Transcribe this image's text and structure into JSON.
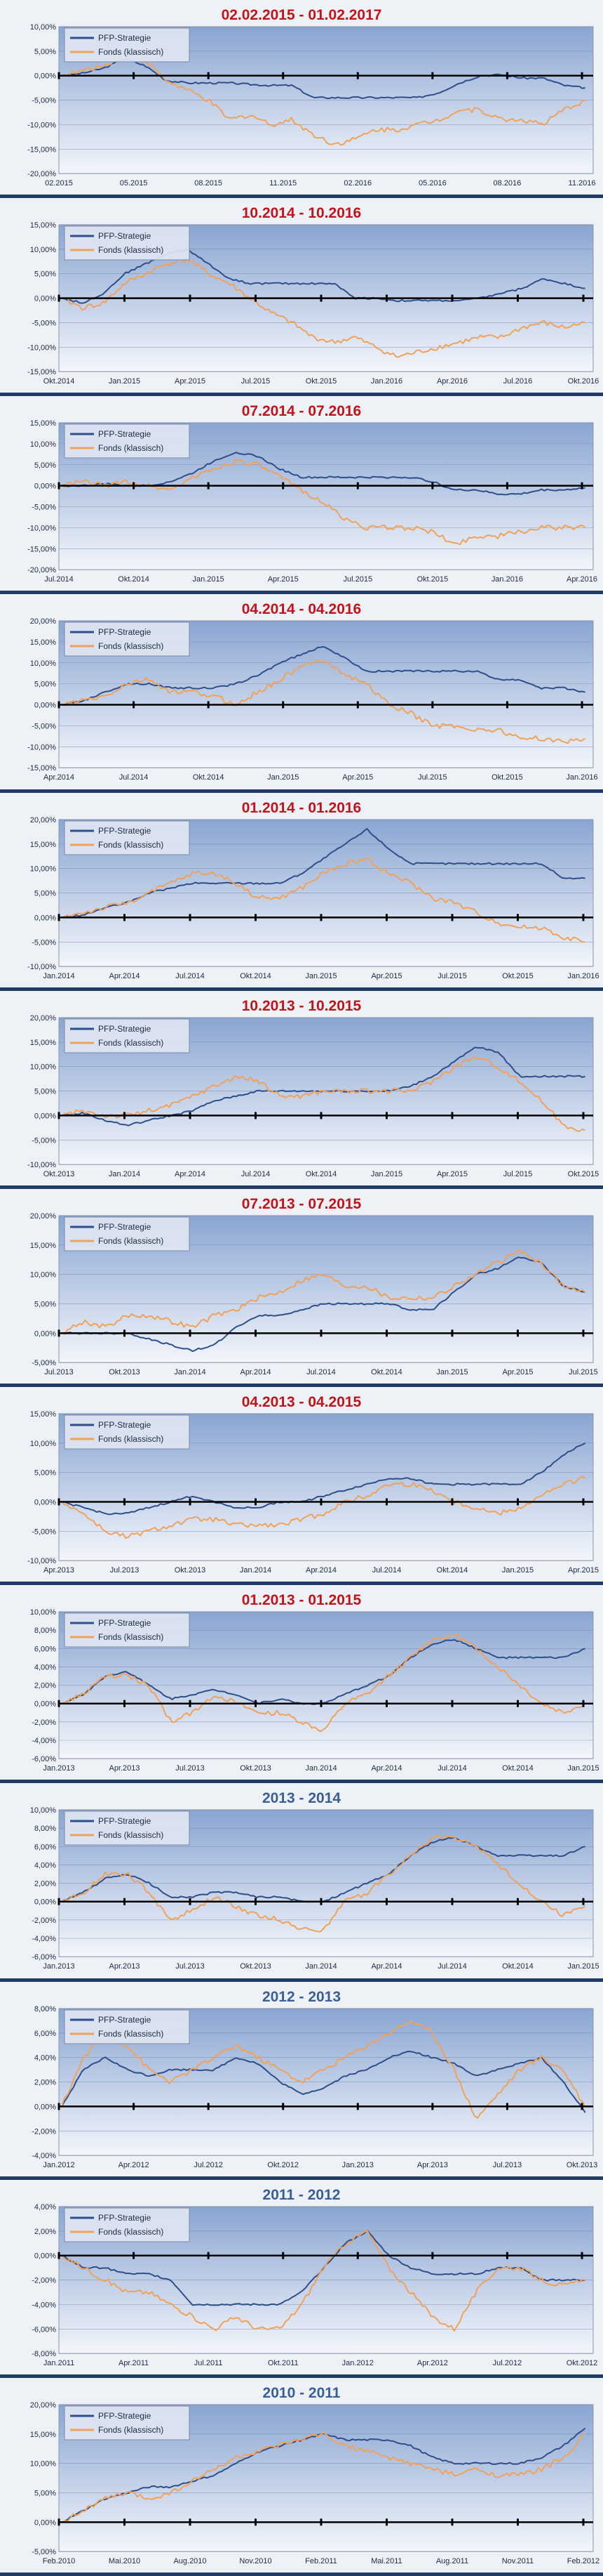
{
  "legend": {
    "series1": "PFP-Strategie",
    "series2": "Fonds (klassisch)"
  },
  "colors": {
    "strategy": "#2e4f8a",
    "fund": "#f0a25a",
    "title_red": "#c0141b",
    "title_blue": "#3a5f95",
    "zero_line": "#000000"
  },
  "chart_data": [
    {
      "type": "line",
      "title": "02.02.2015 - 01.02.2017",
      "title_color": "red",
      "ylim": [
        -20,
        10
      ],
      "ystep": 5,
      "y_ticks": [
        "10,00%",
        "5,00%",
        "0,00%",
        "-5,00%",
        "-10,00%",
        "-15,00%",
        "-20,00%"
      ],
      "x_ticks": [
        "02.2015",
        "05.2015",
        "08.2015",
        "11.2015",
        "02.2016",
        "05.2016",
        "08.2016",
        "11.2016"
      ],
      "series": [
        {
          "name": "PFP-Strategie",
          "values": [
            0,
            0.5,
            1.5,
            3.5,
            2,
            -1,
            -1.5,
            -1.5,
            -1.5,
            -1.8,
            -2,
            -2,
            -4.5,
            -4.5,
            -4.5,
            -4.5,
            -4.5,
            -4.5,
            -3.5,
            -1.5,
            0,
            0.2,
            -0.5,
            -0.5,
            -2,
            -2.5
          ]
        },
        {
          "name": "Fonds (klassisch)",
          "values": [
            0,
            1,
            2,
            4.5,
            3,
            -1,
            -3,
            -5,
            -9,
            -8,
            -10,
            -9,
            -12,
            -14,
            -13,
            -11,
            -11,
            -10,
            -9,
            -7,
            -7,
            -9,
            -9,
            -10,
            -7,
            -5
          ]
        }
      ]
    },
    {
      "type": "line",
      "title": "10.2014 - 10.2016",
      "title_color": "red",
      "ylim": [
        -15,
        15
      ],
      "ystep": 5,
      "y_ticks": [
        "15,00%",
        "10,00%",
        "5,00%",
        "0,00%",
        "-5,00%",
        "-10,00%",
        "-15,00%"
      ],
      "x_ticks": [
        "Okt.2014",
        "Jan.2015",
        "Apr.2015",
        "Jul.2015",
        "Okt.2015",
        "Jan.2016",
        "Apr.2016",
        "Jul.2016",
        "Okt.2016"
      ],
      "series": [
        {
          "name": "PFP-Strategie",
          "values": [
            0,
            -1,
            1,
            5,
            7,
            9,
            10,
            7,
            4,
            3,
            3,
            3,
            3,
            3,
            0,
            0,
            -0.5,
            -0.5,
            -0.5,
            -0.5,
            0,
            1,
            2,
            4,
            3,
            2
          ]
        },
        {
          "name": "Fonds (klassisch)",
          "values": [
            0,
            -2,
            -1,
            3,
            5,
            7,
            8,
            5,
            3,
            0,
            -3,
            -5,
            -8,
            -9,
            -8,
            -10,
            -12,
            -11,
            -10,
            -9,
            -8,
            -8,
            -6,
            -5,
            -6,
            -5
          ]
        }
      ]
    },
    {
      "type": "line",
      "title": "07.2014 - 07.2016",
      "title_color": "red",
      "ylim": [
        -20,
        15
      ],
      "ystep": 5,
      "y_ticks": [
        "15,00%",
        "10,00%",
        "5,00%",
        "0,00%",
        "-5,00%",
        "-10,00%",
        "-15,00%",
        "-20,00%"
      ],
      "x_ticks": [
        "Jul.2014",
        "Okt.2014",
        "Jan.2015",
        "Apr.2015",
        "Jul.2015",
        "Okt.2015",
        "Jan.2016",
        "Apr.2016"
      ],
      "series": [
        {
          "name": "PFP-Strategie",
          "values": [
            0,
            0,
            0.5,
            0,
            0,
            1,
            3,
            6,
            8,
            7,
            4,
            2,
            2,
            2,
            2,
            2,
            2,
            1,
            -1,
            -1,
            -2,
            -2,
            -1,
            -1,
            -0.5
          ]
        },
        {
          "name": "Fonds (klassisch)",
          "values": [
            0,
            1,
            0,
            1,
            0,
            -1,
            2,
            4,
            6,
            5,
            2,
            -1,
            -4,
            -8,
            -10,
            -10,
            -10,
            -11,
            -14,
            -12,
            -12,
            -11,
            -10,
            -10,
            -10
          ]
        }
      ]
    },
    {
      "type": "line",
      "title": "04.2014 - 04.2016",
      "title_color": "red",
      "ylim": [
        -15,
        20
      ],
      "ystep": 5,
      "y_ticks": [
        "20,00%",
        "15,00%",
        "10,00%",
        "5,00%",
        "0,00%",
        "-5,00%",
        "-10,00%",
        "-15,00%"
      ],
      "x_ticks": [
        "Apr.2014",
        "Jul.2014",
        "Okt.2014",
        "Jan.2015",
        "Apr.2015",
        "Jul.2015",
        "Okt.2015",
        "Jan.2016"
      ],
      "series": [
        {
          "name": "PFP-Strategie",
          "values": [
            0,
            1,
            3,
            5,
            5,
            4,
            4,
            4,
            5,
            7,
            10,
            12,
            14,
            11,
            8,
            8,
            8,
            8,
            8,
            8,
            6,
            6,
            4,
            4,
            3
          ]
        },
        {
          "name": "Fonds (klassisch)",
          "values": [
            0,
            1,
            2,
            5,
            6,
            3,
            3,
            2,
            0,
            3,
            6,
            9,
            11,
            7,
            5,
            0,
            -2,
            -5,
            -5,
            -6,
            -6,
            -8,
            -8,
            -9,
            -8
          ]
        }
      ]
    },
    {
      "type": "line",
      "title": "01.2014 - 01.2016",
      "title_color": "red",
      "ylim": [
        -10,
        20
      ],
      "ystep": 5,
      "y_ticks": [
        "20,00%",
        "15,00%",
        "10,00%",
        "5,00%",
        "0,00%",
        "-5,00%",
        "-10,00%"
      ],
      "x_ticks": [
        "Jan.2014",
        "Apr.2014",
        "Jul.2014",
        "Okt.2014",
        "Jan.2015",
        "Apr.2015",
        "Jul.2015",
        "Okt.2015",
        "Jan.2016"
      ],
      "series": [
        {
          "name": "PFP-Strategie",
          "values": [
            0,
            0.5,
            2,
            3,
            5,
            6,
            7,
            7,
            7,
            7,
            7,
            9,
            12,
            15,
            18,
            14,
            11,
            11,
            11,
            11,
            11,
            11,
            11,
            8,
            8
          ]
        },
        {
          "name": "Fonds (klassisch)",
          "values": [
            0,
            1,
            2,
            3,
            5,
            7,
            9,
            9,
            7,
            4,
            4,
            6,
            9,
            11,
            12,
            9,
            7,
            4,
            3,
            1,
            -1,
            -2,
            -2,
            -4,
            -5
          ]
        }
      ]
    },
    {
      "type": "line",
      "title": "10.2013 - 10.2015",
      "title_color": "red",
      "ylim": [
        -10,
        20
      ],
      "ystep": 5,
      "y_ticks": [
        "20,00%",
        "15,00%",
        "10,00%",
        "5,00%",
        "0,00%",
        "-5,00%",
        "-10,00%"
      ],
      "x_ticks": [
        "Okt.2013",
        "Jan.2014",
        "Apr.2014",
        "Jul.2014",
        "Okt.2014",
        "Jan.2015",
        "Apr.2015",
        "Jul.2015",
        "Okt.2015"
      ],
      "series": [
        {
          "name": "PFP-Strategie",
          "values": [
            0,
            0.5,
            -1,
            -2,
            -1,
            0,
            1,
            3,
            4,
            5,
            5,
            5,
            5,
            5,
            5,
            5,
            6,
            8,
            11,
            14,
            13,
            8,
            8,
            8,
            8
          ]
        },
        {
          "name": "Fonds (klassisch)",
          "values": [
            0,
            1,
            0,
            0,
            1,
            2,
            4,
            6,
            8,
            7,
            4,
            4,
            5,
            5,
            5,
            5,
            5,
            7,
            10,
            12,
            10,
            7,
            3,
            -2,
            -3
          ]
        }
      ]
    },
    {
      "type": "line",
      "title": "07.2013 - 07.2015",
      "title_color": "red",
      "ylim": [
        -5,
        20
      ],
      "ystep": 5,
      "y_ticks": [
        "20,00%",
        "15,00%",
        "10,00%",
        "5,00%",
        "0,00%",
        "-5,00%"
      ],
      "x_ticks": [
        "Jul.2013",
        "Okt.2013",
        "Jan.2014",
        "Apr.2014",
        "Jul.2014",
        "Okt.2014",
        "Jan.2015",
        "Apr.2015",
        "Jul.2015"
      ],
      "series": [
        {
          "name": "PFP-Strategie",
          "values": [
            0,
            0,
            0,
            0,
            -1,
            -2,
            -3,
            -2,
            1,
            3,
            3,
            4,
            5,
            5,
            5,
            5,
            4,
            4,
            7,
            10,
            11,
            13,
            12,
            8,
            7
          ]
        },
        {
          "name": "Fonds (klassisch)",
          "values": [
            0,
            2,
            1,
            3,
            3,
            2,
            1,
            3,
            4,
            6,
            7,
            9,
            10,
            8,
            8,
            6,
            6,
            6,
            8,
            10,
            12,
            14,
            12,
            8,
            7
          ]
        }
      ]
    },
    {
      "type": "line",
      "title": "04.2013 - 04.2015",
      "title_color": "red",
      "ylim": [
        -10,
        15
      ],
      "ystep": 5,
      "y_ticks": [
        "15,00%",
        "10,00%",
        "5,00%",
        "0,00%",
        "-5,00%",
        "-10,00%"
      ],
      "x_ticks": [
        "Apr.2013",
        "Jul.2013",
        "Okt.2013",
        "Jan.2014",
        "Apr.2014",
        "Jul.2014",
        "Okt.2014",
        "Jan.2015",
        "Apr.2015"
      ],
      "series": [
        {
          "name": "PFP-Strategie",
          "values": [
            0,
            -1,
            -2,
            -2,
            -1,
            0,
            1,
            0,
            -1,
            -1,
            0,
            0,
            1,
            2,
            3,
            4,
            4,
            3,
            3,
            3,
            3,
            3,
            5,
            8,
            10
          ]
        },
        {
          "name": "Fonds (klassisch)",
          "values": [
            0,
            -2,
            -5,
            -6,
            -5,
            -4,
            -3,
            -3,
            -4,
            -4,
            -4,
            -3,
            -2,
            0,
            1,
            3,
            3,
            2,
            0,
            -1,
            -2,
            -1,
            1,
            3,
            4
          ]
        }
      ]
    },
    {
      "type": "line",
      "title": "01.2013 - 01.2015",
      "title_color": "red",
      "ylim": [
        -6,
        10
      ],
      "ystep": 2,
      "y_ticks": [
        "10,00%",
        "8,00%",
        "6,00%",
        "4,00%",
        "2,00%",
        "0,00%",
        "-2,00%",
        "-4,00%",
        "-6,00%"
      ],
      "x_ticks": [
        "Jan.2013",
        "Apr.2013",
        "Jul.2013",
        "Okt.2013",
        "Jan.2014",
        "Apr.2014",
        "Jul.2014",
        "Okt.2014",
        "Jan.2015"
      ],
      "series": [
        {
          "name": "PFP-Strategie",
          "values": [
            0,
            1,
            3,
            3.5,
            2,
            0.5,
            1,
            1.5,
            1,
            0,
            0.5,
            0,
            0,
            1,
            2,
            3,
            5,
            6.5,
            7,
            6,
            5,
            5,
            5,
            5,
            6
          ]
        },
        {
          "name": "Fonds (klassisch)",
          "values": [
            0,
            1,
            3,
            3,
            2,
            -2,
            -1,
            1,
            0,
            -1,
            -1,
            -2,
            -3,
            0,
            1,
            3,
            5,
            7,
            7.5,
            6,
            4,
            2,
            0,
            -1,
            0
          ]
        }
      ]
    },
    {
      "type": "line",
      "title": "2013 - 2014",
      "title_color": "blue",
      "ylim": [
        -6,
        10
      ],
      "ystep": 2,
      "y_ticks": [
        "10,00%",
        "8,00%",
        "6,00%",
        "4,00%",
        "2,00%",
        "0,00%",
        "-2,00%",
        "-4,00%",
        "-6,00%"
      ],
      "x_ticks": [
        "Jan.2013",
        "Apr.2013",
        "Jul.2013",
        "Okt.2013",
        "Jan.2014",
        "Apr.2014",
        "Jul.2014",
        "Okt.2014",
        "Jan.2015"
      ],
      "series": [
        {
          "name": "PFP-Strategie",
          "values": [
            0,
            1,
            2.5,
            3,
            2,
            0.5,
            0.5,
            1,
            1,
            0.5,
            0.5,
            0,
            0,
            1,
            2,
            3,
            5,
            6.5,
            7,
            6,
            5,
            5,
            5,
            5,
            6
          ]
        },
        {
          "name": "Fonds (klassisch)",
          "values": [
            0,
            1,
            3,
            3,
            1,
            -2,
            -1,
            0.5,
            -0.5,
            -1.5,
            -2,
            -3,
            -3,
            0,
            1,
            3,
            5,
            7,
            7,
            6,
            4,
            2,
            0,
            -1.5,
            -0.5
          ]
        }
      ]
    },
    {
      "type": "line",
      "title": "2012 - 2013",
      "title_color": "blue",
      "ylim": [
        -4,
        8
      ],
      "ystep": 2,
      "y_ticks": [
        "8,00%",
        "6,00%",
        "4,00%",
        "2,00%",
        "0,00%",
        "-2,00%",
        "-4,00%"
      ],
      "x_ticks": [
        "Jan.2012",
        "Apr.2012",
        "Jul.2012",
        "Okt.2012",
        "Jan.2013",
        "Apr.2013",
        "Jul.2013",
        "Okt.2013"
      ],
      "series": [
        {
          "name": "PFP-Strategie",
          "values": [
            0,
            3,
            4,
            3,
            2.5,
            3,
            3,
            3,
            4,
            3.5,
            2,
            1,
            1.5,
            2.5,
            3,
            4,
            4.5,
            4,
            3.5,
            2.5,
            3,
            3.5,
            4,
            2,
            -0.5
          ]
        },
        {
          "name": "Fonds (klassisch)",
          "values": [
            0,
            4,
            6,
            5,
            3,
            2,
            3,
            4,
            5,
            4,
            3,
            2,
            3,
            4,
            5,
            6,
            7,
            6,
            3,
            -1,
            1,
            3,
            4,
            3,
            0
          ]
        }
      ]
    },
    {
      "type": "line",
      "title": "2011 - 2012",
      "title_color": "blue",
      "ylim": [
        -8,
        4
      ],
      "ystep": 2,
      "y_ticks": [
        "4,00%",
        "2,00%",
        "0,00%",
        "-2,00%",
        "-4,00%",
        "-6,00%",
        "-8,00%"
      ],
      "x_ticks": [
        "Jan.2011",
        "Apr.2011",
        "Jul.2011",
        "Okt.2011",
        "Jan.2012",
        "Apr.2012",
        "Jul.2012",
        "Okt.2012"
      ],
      "series": [
        {
          "name": "PFP-Strategie",
          "values": [
            0,
            -1,
            -1,
            -1.5,
            -1.5,
            -2,
            -4,
            -4,
            -4,
            -4,
            -4,
            -3,
            -1,
            1,
            2,
            0,
            -1,
            -1.5,
            -1.5,
            -1.5,
            -1,
            -1,
            -2,
            -2,
            -2
          ]
        },
        {
          "name": "Fonds (klassisch)",
          "values": [
            0,
            -1,
            -2,
            -3,
            -3,
            -4,
            -5,
            -6,
            -5,
            -6,
            -6,
            -4,
            -1,
            1,
            2,
            -1,
            -3,
            -5,
            -6,
            -3,
            -1,
            -1,
            -2,
            -2.5,
            -2
          ]
        }
      ]
    },
    {
      "type": "line",
      "title": "2010 - 2011",
      "title_color": "blue",
      "ylim": [
        -5,
        20
      ],
      "ystep": 5,
      "y_ticks": [
        "20,00%",
        "15,00%",
        "10,00%",
        "5,00%",
        "0,00%",
        "-5,00%"
      ],
      "x_ticks": [
        "Feb.2010",
        "Mai.2010",
        "Aug.2010",
        "Nov.2010",
        "Feb.2011",
        "Mai.2011",
        "Aug.2011",
        "Nov.2011",
        "Feb.2012"
      ],
      "series": [
        {
          "name": "PFP-Strategie",
          "values": [
            0,
            2,
            4,
            5,
            6,
            6,
            7,
            8,
            10,
            12,
            13,
            14,
            15,
            14,
            14,
            14,
            13,
            11,
            10,
            10,
            10,
            10,
            11,
            13,
            16
          ]
        },
        {
          "name": "Fonds (klassisch)",
          "values": [
            0,
            2,
            4,
            5,
            4,
            5,
            7,
            9,
            11,
            12,
            13,
            14,
            15,
            13,
            12,
            11,
            10,
            9,
            8,
            9,
            8,
            8,
            9,
            11,
            15
          ]
        }
      ]
    }
  ]
}
